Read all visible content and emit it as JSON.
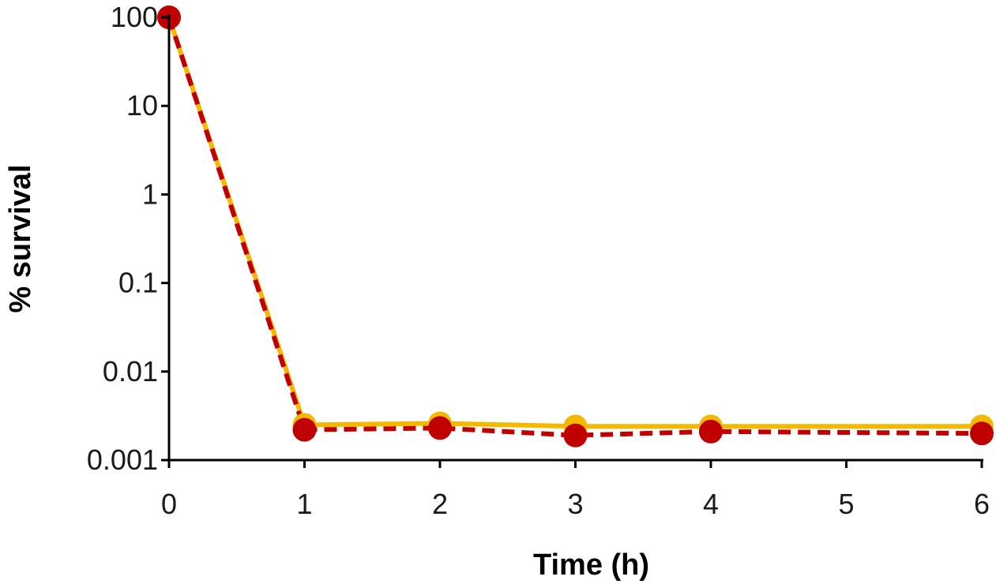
{
  "chart_data": {
    "type": "line",
    "xlabel": "Time (h)",
    "ylabel": "% survival",
    "yscale": "log",
    "xlim": [
      0,
      6
    ],
    "ylim": [
      0.001,
      100
    ],
    "x_ticks": [
      "0",
      "1",
      "2",
      "3",
      "4",
      "5",
      "6"
    ],
    "y_ticks": [
      "0.001",
      "0.01",
      "0.1",
      "1",
      "10",
      "100"
    ],
    "grid": false,
    "legend": "none",
    "series": [
      {
        "color": "#F5B800",
        "line_style": "solid",
        "x": [
          0,
          1,
          2,
          3,
          4,
          6
        ],
        "values": [
          100,
          0.0025,
          0.0026,
          0.0024,
          0.0024,
          0.0024
        ]
      },
      {
        "color": "#C00000",
        "line_style": "dashed",
        "x": [
          0,
          1,
          2,
          3,
          4,
          6
        ],
        "values": [
          100,
          0.0022,
          0.0023,
          0.0019,
          0.0021,
          0.002
        ]
      }
    ]
  }
}
